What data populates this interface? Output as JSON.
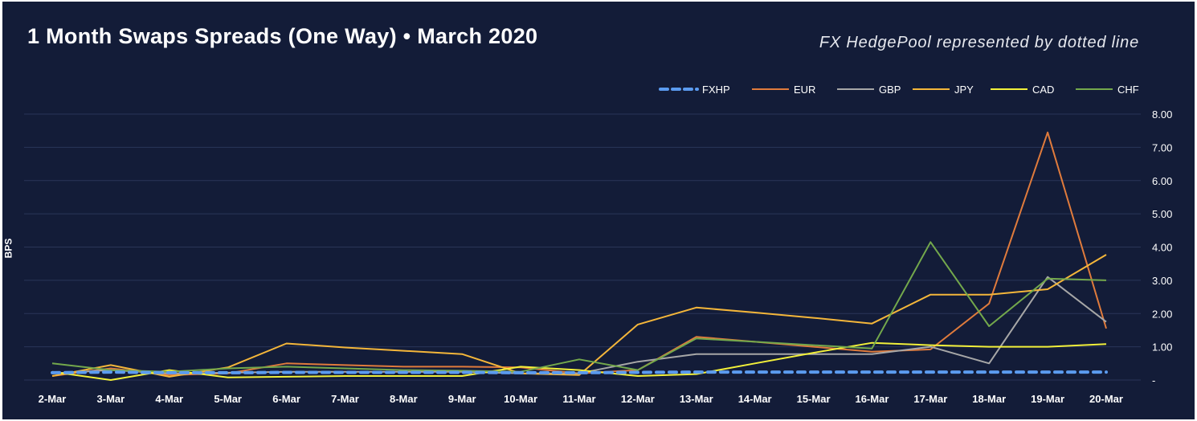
{
  "header": {
    "title": "1 Month Swaps Spreads (One Way) • March 2020",
    "subtitle": "FX HedgePool represented by dotted line"
  },
  "chart_data": {
    "type": "line",
    "title": "1 Month Swaps Spreads (One Way) • March 2020",
    "subtitle": "FX HedgePool represented by dotted line",
    "xlabel": "",
    "ylabel": "BPS",
    "ylim": [
      0,
      8
    ],
    "yticks": [
      0,
      1,
      2,
      3,
      4,
      5,
      6,
      7,
      8
    ],
    "ytick_labels": [
      "-",
      "1.00",
      "2.00",
      "3.00",
      "4.00",
      "5.00",
      "6.00",
      "7.00",
      "8.00"
    ],
    "y_axis_side": "right",
    "grid": "horizontal",
    "legend_position": "top-right",
    "categories": [
      "2-Mar",
      "3-Mar",
      "4-Mar",
      "5-Mar",
      "6-Mar",
      "7-Mar",
      "8-Mar",
      "9-Mar",
      "10-Mar",
      "11-Mar",
      "12-Mar",
      "13-Mar",
      "14-Mar",
      "15-Mar",
      "16-Mar",
      "17-Mar",
      "18-Mar",
      "19-Mar",
      "20-Mar"
    ],
    "series": [
      {
        "name": "FXHP",
        "color": "#5b9bef",
        "dashed": true,
        "values": [
          0.22,
          0.24,
          0.22,
          0.22,
          0.23,
          0.23,
          0.23,
          0.23,
          0.22,
          0.22,
          0.23,
          0.24,
          0.24,
          0.24,
          0.24,
          0.24,
          0.24,
          0.24,
          0.24
        ]
      },
      {
        "name": "EUR",
        "color": "#e07b3c",
        "dashed": false,
        "values": [
          0.12,
          0.35,
          0.15,
          0.2,
          0.5,
          0.45,
          0.4,
          0.4,
          0.38,
          0.2,
          0.3,
          1.3,
          1.15,
          1.0,
          0.85,
          0.92,
          2.3,
          7.45,
          1.55
        ]
      },
      {
        "name": "GBP",
        "color": "#a7a7a7",
        "dashed": false,
        "values": [
          0.2,
          0.3,
          0.2,
          0.22,
          0.25,
          0.25,
          0.25,
          0.25,
          0.2,
          0.2,
          0.55,
          0.78,
          0.78,
          0.78,
          0.78,
          1.0,
          0.5,
          3.1,
          1.75
        ]
      },
      {
        "name": "JPY",
        "color": "#f4b63a",
        "dashed": false,
        "values": [
          0.12,
          0.45,
          0.1,
          0.38,
          1.1,
          0.98,
          0.88,
          0.78,
          0.2,
          0.15,
          1.67,
          2.18,
          2.03,
          1.87,
          1.7,
          2.57,
          2.57,
          2.73,
          3.77
        ]
      },
      {
        "name": "CAD",
        "color": "#f2f03a",
        "dashed": false,
        "values": [
          0.25,
          0.0,
          0.3,
          0.08,
          0.1,
          0.12,
          0.12,
          0.12,
          0.4,
          0.3,
          0.12,
          0.18,
          0.5,
          0.82,
          1.12,
          1.05,
          1.0,
          1.0,
          1.08
        ]
      },
      {
        "name": "CHF",
        "color": "#73a84c",
        "dashed": false,
        "values": [
          0.5,
          0.3,
          0.25,
          0.35,
          0.4,
          0.35,
          0.3,
          0.28,
          0.25,
          0.62,
          0.3,
          1.25,
          1.15,
          1.05,
          0.95,
          4.15,
          1.62,
          3.05,
          3.0
        ]
      }
    ]
  }
}
